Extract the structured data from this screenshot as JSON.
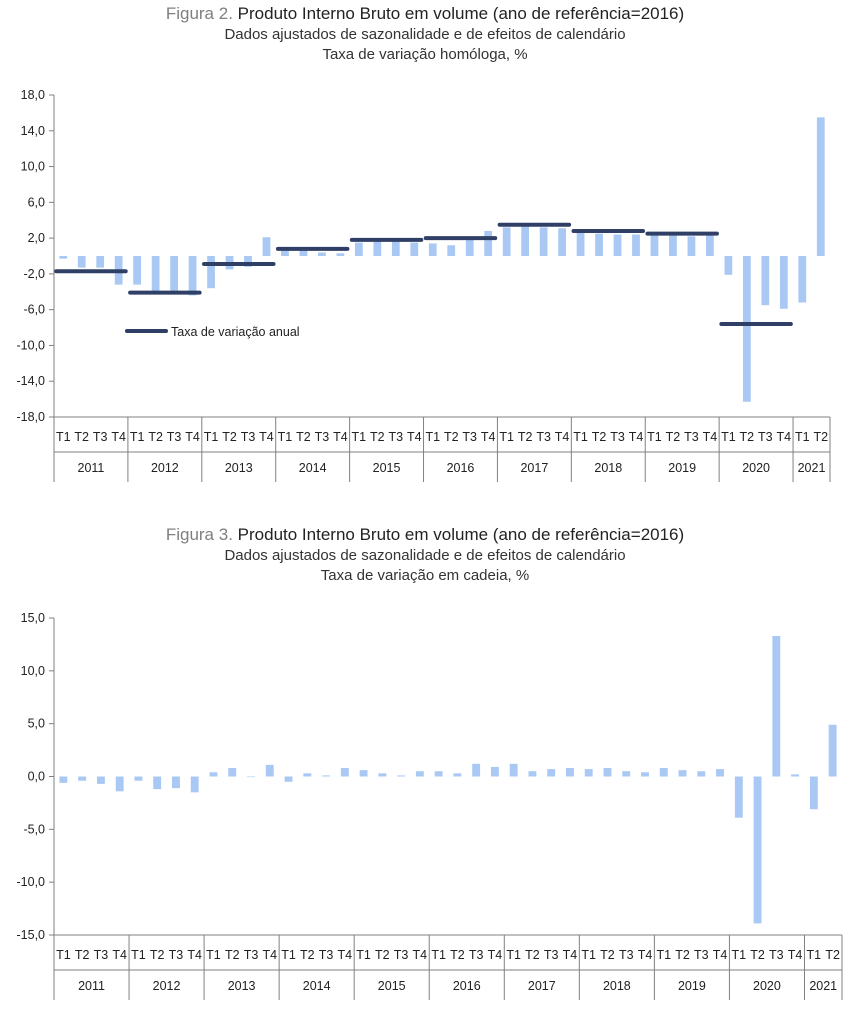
{
  "figures": [
    {
      "title_lead": "Figura 2.",
      "title_main": "Produto Interno Bruto em volume (ano de referência=2016)",
      "subtitle": "Dados ajustados de sazonalidade e de efeitos de calendário",
      "subtitle2": "Taxa de variação homóloga, %",
      "legend": "Taxa de variação anual"
    },
    {
      "title_lead": "Figura 3.",
      "title_main": "Produto Interno Bruto em volume (ano de referência=2016)",
      "subtitle": "Dados ajustados de sazonalidade e de efeitos de calendário",
      "subtitle2": "Taxa de variação em cadeia, %"
    }
  ],
  "colors": {
    "bar": "#a9c8f3",
    "annual": "#2f3f66",
    "axis": "#808080"
  },
  "chart_data": [
    {
      "type": "bar",
      "title": "Produto Interno Bruto em volume (ano de referência=2016)",
      "ylim": [
        -18,
        18
      ],
      "yticks": [
        18,
        14,
        10,
        6,
        2,
        -2,
        -6,
        -10,
        -14,
        -18
      ],
      "ytick_labels": [
        "18,0",
        "14,0",
        "10,0",
        "6,0",
        "2,0",
        "-2,0",
        "-6,0",
        "-10,0",
        "-14,0",
        "-18,0"
      ],
      "quarter_labels": [
        "T1",
        "T2",
        "T3",
        "T4"
      ],
      "groups": [
        {
          "year": "2011",
          "n": 4
        },
        {
          "year": "2012",
          "n": 4
        },
        {
          "year": "2013",
          "n": 4
        },
        {
          "year": "2014",
          "n": 4
        },
        {
          "year": "2015",
          "n": 4
        },
        {
          "year": "2016",
          "n": 4
        },
        {
          "year": "2017",
          "n": 4
        },
        {
          "year": "2018",
          "n": 4
        },
        {
          "year": "2019",
          "n": 4
        },
        {
          "year": "2020",
          "n": 4
        },
        {
          "year": "2021",
          "n": 2
        }
      ],
      "series": [
        {
          "name": "Taxa de variação homóloga",
          "values": [
            -0.3,
            -1.3,
            -1.3,
            -3.2,
            -3.2,
            -4.0,
            -4.1,
            -4.4,
            -3.6,
            -1.5,
            -1.2,
            2.1,
            0.7,
            0.8,
            0.4,
            0.3,
            1.5,
            1.7,
            2.0,
            1.5,
            1.4,
            1.2,
            2.0,
            2.8,
            3.2,
            3.3,
            3.2,
            3.1,
            2.6,
            2.5,
            2.4,
            2.4,
            2.3,
            2.4,
            2.2,
            2.3,
            -2.1,
            -16.3,
            -5.5,
            -5.9,
            -5.2,
            15.5
          ]
        },
        {
          "name": "Taxa de variação anual",
          "values": [
            -1.7,
            -4.1,
            -0.9,
            0.8,
            1.8,
            2.0,
            3.5,
            2.8,
            2.5,
            -7.6
          ]
        }
      ]
    },
    {
      "type": "bar",
      "title": "Produto Interno Bruto em volume (ano de referência=2016)",
      "ylim": [
        -15,
        15
      ],
      "yticks": [
        15,
        10,
        5,
        0,
        -5,
        -10,
        -15
      ],
      "ytick_labels": [
        "15,0",
        "10,0",
        "5,0",
        "0,0",
        "-5,0",
        "-10,0",
        "-15,0"
      ],
      "quarter_labels": [
        "T1",
        "T2",
        "T3",
        "T4"
      ],
      "groups": [
        {
          "year": "2011",
          "n": 4
        },
        {
          "year": "2012",
          "n": 4
        },
        {
          "year": "2013",
          "n": 4
        },
        {
          "year": "2014",
          "n": 4
        },
        {
          "year": "2015",
          "n": 4
        },
        {
          "year": "2016",
          "n": 4
        },
        {
          "year": "2017",
          "n": 4
        },
        {
          "year": "2018",
          "n": 4
        },
        {
          "year": "2019",
          "n": 4
        },
        {
          "year": "2020",
          "n": 4
        },
        {
          "year": "2021",
          "n": 2
        }
      ],
      "series": [
        {
          "name": "Taxa de variação em cadeia",
          "values": [
            -0.6,
            -0.4,
            -0.7,
            -1.4,
            -0.4,
            -1.2,
            -1.1,
            -1.5,
            0.4,
            0.8,
            0.0,
            1.1,
            -0.5,
            0.3,
            0.1,
            0.8,
            0.6,
            0.3,
            0.1,
            0.5,
            0.5,
            0.3,
            1.2,
            0.9,
            1.2,
            0.5,
            0.7,
            0.8,
            0.7,
            0.8,
            0.5,
            0.4,
            0.8,
            0.6,
            0.5,
            0.7,
            -3.9,
            -13.9,
            13.3,
            0.2,
            -3.1,
            4.9
          ]
        }
      ]
    }
  ]
}
